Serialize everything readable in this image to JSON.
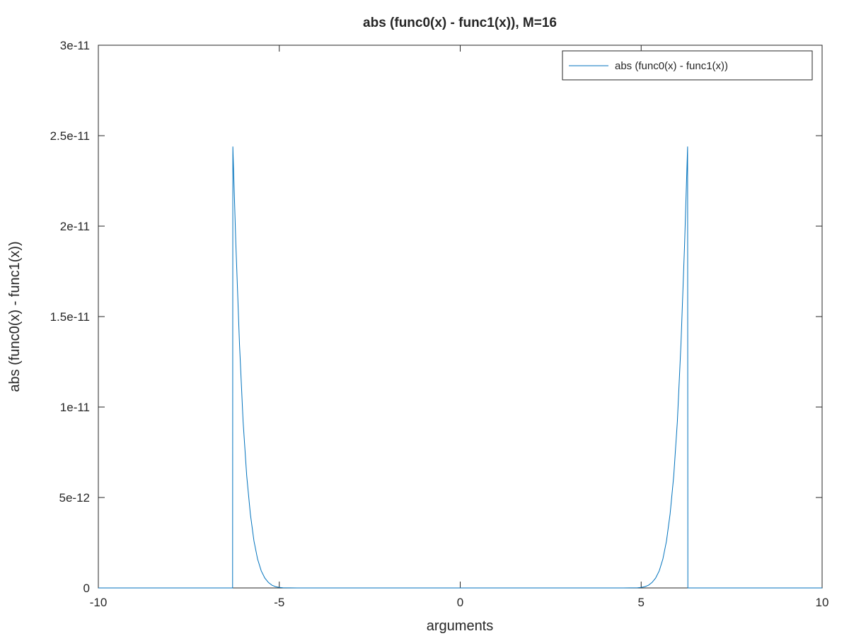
{
  "chart_data": {
    "type": "line",
    "title": "abs (func0(x) - func1(x)), M=16",
    "xlabel": "arguments",
    "ylabel": "abs (func0(x) - func1(x))",
    "xlim": [
      -10,
      10
    ],
    "ylim": [
      0,
      3e-11
    ],
    "x_ticks": [
      -10,
      -5,
      0,
      5,
      10
    ],
    "x_tick_labels": [
      "-10",
      "-5",
      "0",
      "5",
      "10"
    ],
    "y_ticks": [
      0,
      5e-12,
      1e-11,
      1.5e-11,
      2e-11,
      2.5e-11,
      3e-11
    ],
    "y_tick_labels": [
      "0",
      "5e-12",
      "1e-11",
      "1.5e-11",
      "2e-11",
      "2.5e-11",
      "3e-11"
    ],
    "grid": false,
    "legend_position": "top-right",
    "series": [
      {
        "name": "abs (func0(x) - func1(x))",
        "color": "#0072bd",
        "x": [
          -10,
          -6.29,
          -6.283,
          -6.2,
          -6.1,
          -6.0,
          -5.9,
          -5.8,
          -5.7,
          -5.6,
          -5.5,
          -5.4,
          -5.3,
          -5.2,
          -5.1,
          -5.0,
          -4.9,
          -4.5,
          0,
          4.5,
          4.9,
          5.0,
          5.1,
          5.2,
          5.3,
          5.4,
          5.5,
          5.6,
          5.7,
          5.8,
          5.9,
          6.0,
          6.1,
          6.2,
          6.283,
          6.29,
          10
        ],
        "y": [
          0,
          0,
          2.44e-11,
          1.9e-11,
          1.35e-11,
          9.2e-12,
          6.2e-12,
          4.1e-12,
          2.6e-12,
          1.6e-12,
          9.5e-13,
          5.5e-13,
          3e-13,
          1.5e-13,
          7e-14,
          3e-14,
          1e-14,
          0,
          0,
          0,
          1e-14,
          3e-14,
          7e-14,
          1.5e-13,
          3e-13,
          5.5e-13,
          9.5e-13,
          1.6e-12,
          2.6e-12,
          4.1e-12,
          6.2e-12,
          9.2e-12,
          1.35e-11,
          1.9e-11,
          2.44e-11,
          0,
          0
        ]
      }
    ]
  }
}
